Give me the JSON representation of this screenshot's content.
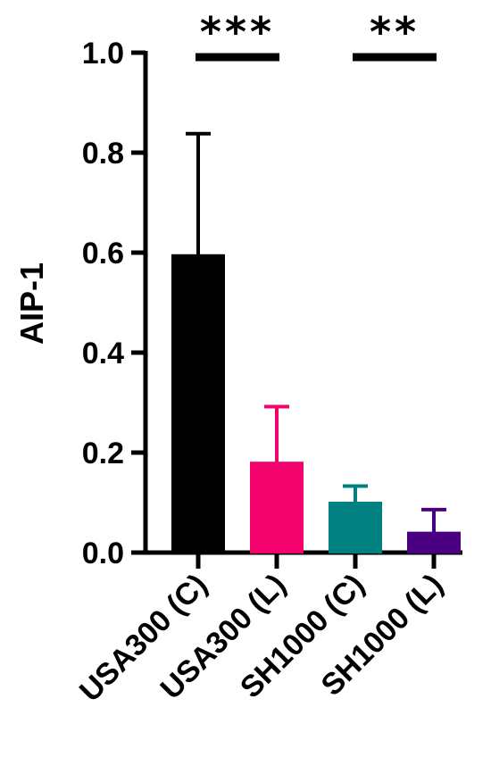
{
  "chart_data": {
    "type": "bar",
    "ylabel": "AIP-1",
    "ylim": [
      0,
      1.0
    ],
    "yticks": [
      "0.0",
      "0.2",
      "0.4",
      "0.6",
      "0.8",
      "1.0"
    ],
    "grid": false,
    "categories": [
      "USA300 (C)",
      "USA300 (L)",
      "SH1000 (C)",
      "SH1000 (L)"
    ],
    "values": [
      0.595,
      0.18,
      0.1,
      0.04
    ],
    "error": [
      0.243,
      0.112,
      0.033,
      0.046
    ],
    "colors": [
      "#000000",
      "#f2026b",
      "#008080",
      "#4b0082"
    ],
    "significance": [
      {
        "text": "***",
        "from": 0,
        "to": 1
      },
      {
        "text": "**",
        "from": 2,
        "to": 3
      }
    ]
  }
}
